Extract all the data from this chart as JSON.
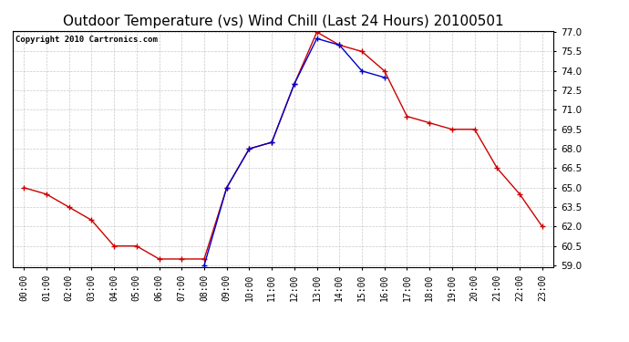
{
  "title": "Outdoor Temperature (vs) Wind Chill (Last 24 Hours) 20100501",
  "copyright": "Copyright 2010 Cartronics.com",
  "hours": [
    "00:00",
    "01:00",
    "02:00",
    "03:00",
    "04:00",
    "05:00",
    "06:00",
    "07:00",
    "08:00",
    "09:00",
    "10:00",
    "11:00",
    "12:00",
    "13:00",
    "14:00",
    "15:00",
    "16:00",
    "17:00",
    "18:00",
    "19:00",
    "20:00",
    "21:00",
    "22:00",
    "23:00"
  ],
  "temp": [
    65.0,
    64.5,
    63.5,
    62.5,
    60.5,
    60.5,
    59.5,
    59.5,
    59.5,
    65.0,
    68.0,
    68.5,
    73.0,
    77.0,
    76.0,
    75.5,
    74.0,
    70.5,
    70.0,
    69.5,
    69.5,
    66.5,
    64.5,
    62.0
  ],
  "windchill": [
    null,
    null,
    null,
    null,
    null,
    null,
    null,
    null,
    59.0,
    65.0,
    68.0,
    68.5,
    73.0,
    76.5,
    76.0,
    74.0,
    73.5,
    null,
    null,
    null,
    null,
    null,
    null,
    null
  ],
  "temp_color": "#cc0000",
  "windchill_color": "#0000cc",
  "ylim_min": 59.0,
  "ylim_max": 77.0,
  "yticks": [
    59.0,
    60.5,
    62.0,
    63.5,
    65.0,
    66.5,
    68.0,
    69.5,
    71.0,
    72.5,
    74.0,
    75.5,
    77.0
  ],
  "bg_color": "#ffffff",
  "grid_color": "#bbbbbb",
  "title_fontsize": 11,
  "copyright_fontsize": 6.5,
  "tick_fontsize": 7,
  "ytick_fontsize": 7.5
}
